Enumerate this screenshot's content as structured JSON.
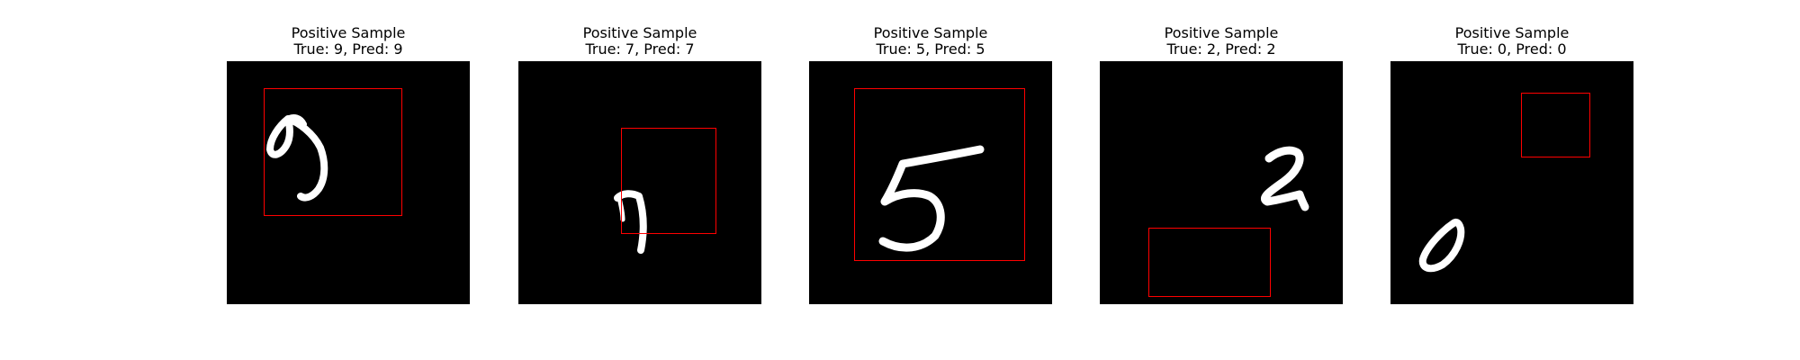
{
  "figure": {
    "panels": [
      {
        "title": "Positive Sample",
        "subtitle": "True: 9, Pred: 9",
        "digit_glyph": "9-icon"
      },
      {
        "title": "Positive Sample",
        "subtitle": "True: 7, Pred: 7",
        "digit_glyph": "7-icon"
      },
      {
        "title": "Positive Sample",
        "subtitle": "True: 5, Pred: 5",
        "digit_glyph": "5-icon"
      },
      {
        "title": "Positive Sample",
        "subtitle": "True: 2, Pred: 2",
        "digit_glyph": "2-icon"
      },
      {
        "title": "Positive Sample",
        "subtitle": "True: 0, Pred: 0",
        "digit_glyph": "0-icon"
      }
    ],
    "colors": {
      "background": "#ffffff",
      "image_background": "#000000",
      "digit_stroke": "#ffffff",
      "box": "#ff0000"
    }
  }
}
